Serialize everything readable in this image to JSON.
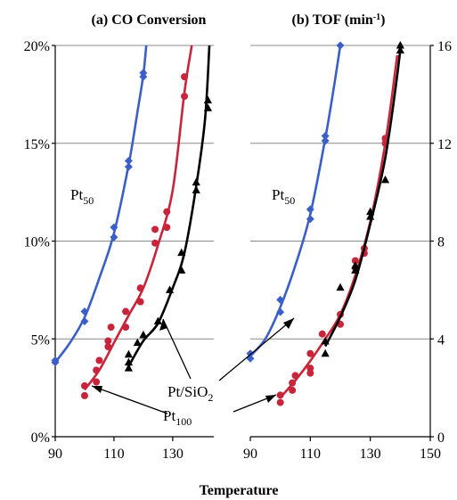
{
  "figure": {
    "xlabel": "Temperature",
    "annotations": {
      "pt50_a": {
        "main": "Pt",
        "sub": "50"
      },
      "pt50_b": {
        "main": "Pt",
        "sub": "50"
      },
      "pt_sio2": {
        "main": "Pt/SiO",
        "sub": "2"
      },
      "pt100": {
        "main": "Pt",
        "sub": "100"
      }
    }
  },
  "colors": {
    "pt50": "#3a5fc8",
    "pt100": "#c8243a",
    "pt_sio2": "#000000",
    "grid": "#8c8c8c"
  },
  "chart_data": [
    {
      "type": "scatter",
      "title": "(a) CO Conversion",
      "xlabel": "Temperature",
      "ylabel": "",
      "xlim": [
        90,
        144
      ],
      "ylim": [
        0,
        20
      ],
      "xticks": [
        90,
        110,
        130
      ],
      "yticks": [
        0,
        5,
        10,
        15,
        20
      ],
      "yticklabels": [
        "0%",
        "5%",
        "10%",
        "15%",
        "20%"
      ],
      "grid": "horizontal",
      "series": [
        {
          "name": "Pt50",
          "color": "#3a5fc8",
          "marker": "diamond",
          "points": [
            [
              90,
              3.8
            ],
            [
              90,
              3.9
            ],
            [
              100,
              5.9
            ],
            [
              100,
              6.4
            ],
            [
              110,
              10.2
            ],
            [
              110,
              10.7
            ],
            [
              115,
              13.8
            ],
            [
              115,
              14.1
            ],
            [
              120,
              18.4
            ],
            [
              120,
              18.6
            ]
          ],
          "curve": [
            [
              90,
              3.8
            ],
            [
              95,
              4.8
            ],
            [
              100,
              6.1
            ],
            [
              105,
              8.1
            ],
            [
              110,
              10.4
            ],
            [
              115,
              13.9
            ],
            [
              118,
              16.6
            ],
            [
              120,
              18.5
            ],
            [
              121,
              20
            ]
          ]
        },
        {
          "name": "Pt100",
          "color": "#c8243a",
          "marker": "circle",
          "points": [
            [
              100,
              2.1
            ],
            [
              100,
              2.6
            ],
            [
              104,
              2.8
            ],
            [
              104,
              3.4
            ],
            [
              105,
              3.9
            ],
            [
              108,
              4.6
            ],
            [
              108,
              4.9
            ],
            [
              109,
              5.6
            ],
            [
              114,
              5.6
            ],
            [
              114,
              6.4
            ],
            [
              119,
              6.9
            ],
            [
              119,
              7.6
            ],
            [
              124,
              9.9
            ],
            [
              124,
              10.6
            ],
            [
              128,
              10.7
            ],
            [
              128,
              11.5
            ],
            [
              134,
              17.4
            ],
            [
              134,
              18.4
            ]
          ],
          "curve": [
            [
              100,
              2.4
            ],
            [
              105,
              3.4
            ],
            [
              110,
              4.8
            ],
            [
              115,
              6.2
            ],
            [
              120,
              7.6
            ],
            [
              125,
              9.8
            ],
            [
              130,
              12.6
            ],
            [
              134,
              17.6
            ],
            [
              136.5,
              20
            ]
          ]
        },
        {
          "name": "Pt/SiO2",
          "color": "#000000",
          "marker": "triangle",
          "points": [
            [
              115,
              3.5
            ],
            [
              115,
              3.8
            ],
            [
              115,
              4.2
            ],
            [
              118,
              4.8
            ],
            [
              120,
              5.2
            ],
            [
              125,
              5.9
            ],
            [
              129,
              7.5
            ],
            [
              133,
              8.5
            ],
            [
              133,
              9.4
            ],
            [
              138,
              12.6
            ],
            [
              138,
              13.0
            ],
            [
              142,
              16.8
            ],
            [
              142,
              17.2
            ]
          ],
          "curve": [
            [
              115,
              3.6
            ],
            [
              120,
              4.9
            ],
            [
              125,
              5.8
            ],
            [
              130,
              7.6
            ],
            [
              134,
              9.4
            ],
            [
              138,
              12.8
            ],
            [
              141,
              16.2
            ],
            [
              142.5,
              20
            ]
          ]
        }
      ]
    },
    {
      "type": "scatter",
      "title": "(b) TOF (min-1)",
      "xlabel": "Temperature",
      "ylabel": "",
      "xlim": [
        90,
        150
      ],
      "ylim": [
        0,
        16
      ],
      "xticks": [
        90,
        110,
        130,
        150
      ],
      "yticks": [
        0,
        4,
        8,
        12,
        16
      ],
      "yticklabels": [
        "0",
        "4",
        "8",
        "12",
        "16"
      ],
      "grid": "horizontal",
      "series": [
        {
          "name": "Pt50",
          "color": "#3a5fc8",
          "marker": "diamond",
          "points": [
            [
              90,
              3.2
            ],
            [
              90,
              3.4
            ],
            [
              100,
              5.1
            ],
            [
              100,
              5.6
            ],
            [
              110,
              8.9
            ],
            [
              110,
              9.3
            ],
            [
              115,
              12.1
            ],
            [
              115,
              12.3
            ],
            [
              120,
              16.0
            ]
          ],
          "curve": [
            [
              90,
              3.3
            ],
            [
              95,
              4.0
            ],
            [
              100,
              5.3
            ],
            [
              105,
              7.0
            ],
            [
              110,
              9.1
            ],
            [
              115,
              12.2
            ],
            [
              118,
              14.4
            ],
            [
              120,
              16.0
            ]
          ]
        },
        {
          "name": "Pt100",
          "color": "#c8243a",
          "marker": "circle",
          "points": [
            [
              100,
              1.4
            ],
            [
              100,
              1.7
            ],
            [
              104,
              1.9
            ],
            [
              104,
              2.2
            ],
            [
              105,
              2.5
            ],
            [
              110,
              2.6
            ],
            [
              110,
              2.8
            ],
            [
              110,
              3.4
            ],
            [
              114,
              4.2
            ],
            [
              120,
              4.6
            ],
            [
              120,
              5.0
            ],
            [
              125,
              6.9
            ],
            [
              125,
              7.2
            ],
            [
              128,
              7.5
            ],
            [
              128,
              7.7
            ],
            [
              135,
              12.0
            ],
            [
              135,
              12.2
            ]
          ],
          "curve": [
            [
              100,
              1.6
            ],
            [
              105,
              2.3
            ],
            [
              110,
              3.1
            ],
            [
              115,
              4.0
            ],
            [
              120,
              5.0
            ],
            [
              125,
              6.6
            ],
            [
              130,
              8.8
            ],
            [
              135,
              12.0
            ],
            [
              139,
              15.6
            ]
          ]
        },
        {
          "name": "Pt/SiO2",
          "color": "#000000",
          "marker": "triangle",
          "points": [
            [
              115,
              3.4
            ],
            [
              115,
              3.9
            ],
            [
              120,
              6.1
            ],
            [
              125,
              6.8
            ],
            [
              125,
              7.0
            ],
            [
              130,
              9.0
            ],
            [
              130,
              9.2
            ],
            [
              135,
              10.5
            ],
            [
              140,
              15.8
            ],
            [
              140,
              16.0
            ]
          ],
          "curve": [
            [
              115,
              3.7
            ],
            [
              120,
              4.9
            ],
            [
              125,
              6.4
            ],
            [
              130,
              8.7
            ],
            [
              135,
              11.4
            ],
            [
              139,
              14.8
            ],
            [
              141,
              17.0
            ]
          ]
        }
      ]
    }
  ]
}
